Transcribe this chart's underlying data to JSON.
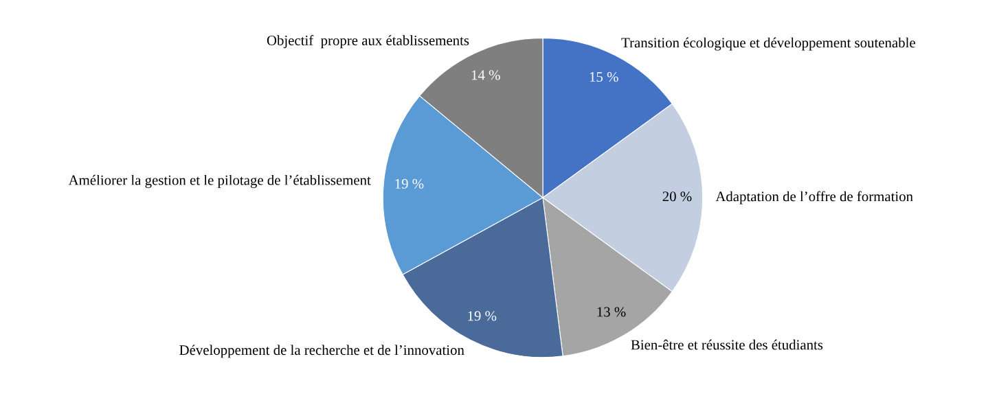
{
  "chart_data": {
    "type": "pie",
    "categories": [
      "Transition écologique et développement soutenable",
      "Adaptation de l’offre de formation",
      "Bien-être et réussite des étudiants",
      "Développement de la recherche et de l’innovation",
      "Améliorer la gestion et le pilotage de l’établissement",
      "Objectif  propre aux établissements"
    ],
    "values": [
      15,
      20,
      13,
      19,
      19,
      14
    ],
    "value_labels": [
      "15 %",
      "20 %",
      "13 %",
      "19 %",
      "19 %",
      "14 %"
    ],
    "colors": [
      "#4472c4",
      "#c3cee1",
      "#a5a5a5",
      "#4a6a99",
      "#5b9bd5",
      "#7f7f7f"
    ]
  }
}
